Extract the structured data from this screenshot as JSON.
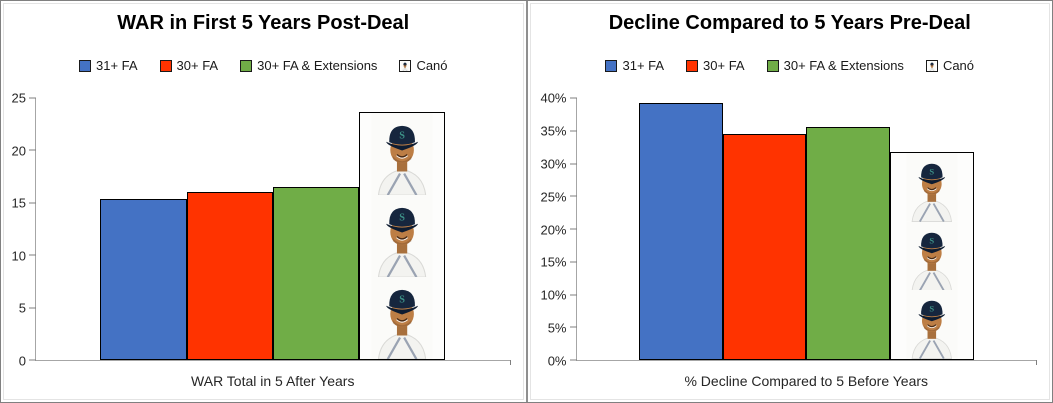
{
  "colors": {
    "blue": "#4472C4",
    "red": "#FF3300",
    "green": "#70AD47",
    "axis_line": "#A6A6A6",
    "tick_mark": "#7F7F7F",
    "text": "#262626",
    "bar_border": "#000000"
  },
  "icons": {
    "cano_swatch": "player-headshot-mini",
    "cano_bar_fill": "player-headshot-repeated"
  },
  "chart_data": [
    {
      "type": "bar",
      "title": "WAR in First 5 Years Post-Deal",
      "xlabel": "WAR Total in 5 After Years",
      "ylabel": "",
      "legend_position": "top",
      "grid": false,
      "ylim": [
        0,
        25
      ],
      "ytick_values": [
        0,
        5,
        10,
        15,
        20,
        25
      ],
      "ytick_labels": [
        "0",
        "5",
        "10",
        "15",
        "20",
        "25"
      ],
      "photos_per_bar": 3,
      "series": [
        {
          "name": "31+ FA",
          "value": 15.4,
          "fill": "#4472C4"
        },
        {
          "name": "30+ FA",
          "value": 16.0,
          "fill": "#FF3300"
        },
        {
          "name": "30+ FA & Extensions",
          "value": 16.5,
          "fill": "#70AD47"
        },
        {
          "name": "Canó",
          "value": 23.7,
          "fill": "photo"
        }
      ]
    },
    {
      "type": "bar",
      "title": "Decline Compared to 5 Years Pre-Deal",
      "xlabel": "% Decline Compared to 5 Before Years",
      "ylabel": "",
      "legend_position": "top",
      "grid": false,
      "ylim": [
        0,
        40
      ],
      "ytick_values": [
        0,
        5,
        10,
        15,
        20,
        25,
        30,
        35,
        40
      ],
      "ytick_labels": [
        "0%",
        "5%",
        "10%",
        "15%",
        "20%",
        "25%",
        "30%",
        "35%",
        "40%"
      ],
      "photos_per_bar": 3,
      "series": [
        {
          "name": "31+ FA",
          "value": 39.3,
          "fill": "#4472C4"
        },
        {
          "name": "30+ FA",
          "value": 34.5,
          "fill": "#FF3300"
        },
        {
          "name": "30+ FA & Extensions",
          "value": 35.5,
          "fill": "#70AD47"
        },
        {
          "name": "Canó",
          "value": 31.7,
          "fill": "photo"
        }
      ]
    }
  ]
}
